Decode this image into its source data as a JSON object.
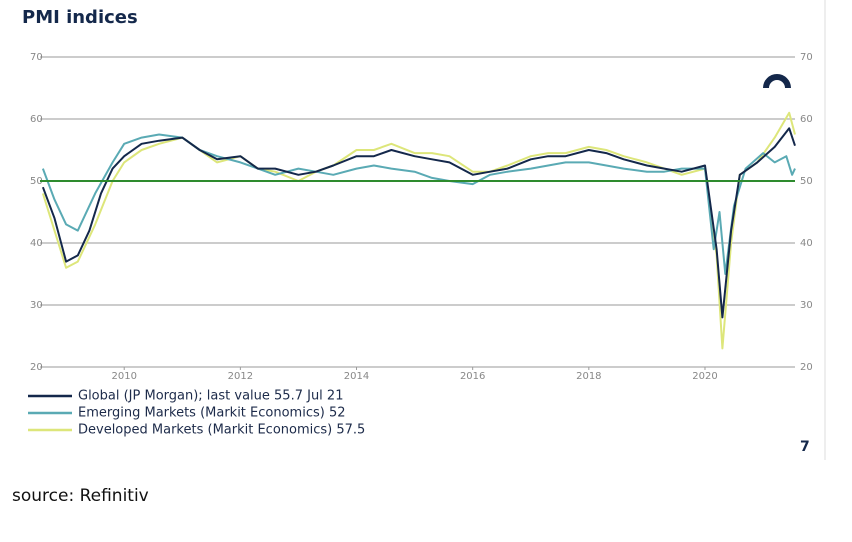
{
  "chart_data": {
    "type": "line",
    "title": "PMI indices",
    "source": "source: Refinitiv",
    "page_number": "7",
    "xlim": [
      2008.55,
      2021.55
    ],
    "xticks": [
      2010,
      2012,
      2014,
      2016,
      2018,
      2020
    ],
    "ylim": [
      20,
      70
    ],
    "yticks": [
      20,
      30,
      40,
      50,
      60,
      70
    ],
    "y2lim": [
      20,
      70
    ],
    "y2ticks": [
      20,
      30,
      40,
      50,
      60,
      70
    ],
    "grid": true,
    "reference_line": {
      "value": 50,
      "color": "#2e8b2e"
    },
    "legend": "bottom-left",
    "series": [
      {
        "name": "Global (JP Morgan); last value 55.7 Jul 21",
        "color": "#14284b",
        "x": [
          2008.6,
          2008.8,
          2009.0,
          2009.2,
          2009.4,
          2009.6,
          2009.8,
          2010.0,
          2010.3,
          2010.6,
          2011.0,
          2011.3,
          2011.6,
          2012.0,
          2012.3,
          2012.6,
          2013.0,
          2013.3,
          2013.6,
          2014.0,
          2014.3,
          2014.6,
          2015.0,
          2015.3,
          2015.6,
          2016.0,
          2016.3,
          2016.6,
          2017.0,
          2017.3,
          2017.6,
          2018.0,
          2018.3,
          2018.6,
          2019.0,
          2019.3,
          2019.6,
          2020.0,
          2020.2,
          2020.3,
          2020.45,
          2020.6,
          2020.9,
          2021.2,
          2021.45,
          2021.55
        ],
        "values": [
          49,
          44,
          37,
          38,
          42,
          48,
          52,
          54,
          56,
          56.5,
          57,
          55,
          53.5,
          54,
          52,
          52,
          51,
          51.5,
          52.5,
          54,
          54,
          55,
          54,
          53.5,
          53,
          51,
          51.5,
          52,
          53.5,
          54,
          54,
          55,
          54.5,
          53.5,
          52.5,
          52,
          51.5,
          52.5,
          39,
          28,
          42,
          51,
          53,
          55.5,
          58.5,
          55.7
        ]
      },
      {
        "name": "Emerging Markets (Markit Economics) 52",
        "color": "#5aaab4",
        "x": [
          2008.6,
          2008.8,
          2009.0,
          2009.2,
          2009.5,
          2009.8,
          2010.0,
          2010.3,
          2010.6,
          2011.0,
          2011.3,
          2011.6,
          2012.0,
          2012.3,
          2012.6,
          2013.0,
          2013.3,
          2013.6,
          2014.0,
          2014.3,
          2014.6,
          2015.0,
          2015.3,
          2015.6,
          2016.0,
          2016.3,
          2016.6,
          2017.0,
          2017.3,
          2017.6,
          2018.0,
          2018.3,
          2018.6,
          2019.0,
          2019.3,
          2019.6,
          2020.0,
          2020.15,
          2020.25,
          2020.35,
          2020.5,
          2020.7,
          2021.0,
          2021.2,
          2021.4,
          2021.5,
          2021.55
        ],
        "values": [
          52,
          47,
          43,
          42,
          48,
          53,
          56,
          57,
          57.5,
          57,
          55,
          54,
          53,
          52,
          51,
          52,
          51.5,
          51,
          52,
          52.5,
          52,
          51.5,
          50.5,
          50,
          49.5,
          51,
          51.5,
          52,
          52.5,
          53,
          53,
          52.5,
          52,
          51.5,
          51.5,
          52,
          52,
          39,
          45,
          35,
          46,
          52,
          54.5,
          53,
          54,
          51,
          52
        ]
      },
      {
        "name": "Developed Markets (Markit Economics) 57.5",
        "color": "#dde67a",
        "x": [
          2008.6,
          2008.8,
          2009.0,
          2009.2,
          2009.5,
          2009.8,
          2010.0,
          2010.3,
          2010.6,
          2011.0,
          2011.3,
          2011.6,
          2012.0,
          2012.3,
          2012.6,
          2013.0,
          2013.3,
          2013.6,
          2014.0,
          2014.3,
          2014.6,
          2015.0,
          2015.3,
          2015.6,
          2016.0,
          2016.3,
          2016.6,
          2017.0,
          2017.3,
          2017.6,
          2018.0,
          2018.3,
          2018.6,
          2019.0,
          2019.3,
          2019.6,
          2020.0,
          2020.2,
          2020.3,
          2020.45,
          2020.6,
          2020.9,
          2021.2,
          2021.45,
          2021.55
        ],
        "values": [
          48,
          42,
          36,
          37,
          43,
          50,
          53,
          55,
          56,
          57,
          55,
          53,
          54,
          52,
          51.5,
          50,
          51.5,
          52.5,
          55,
          55,
          56,
          54.5,
          54.5,
          54,
          51.5,
          51.5,
          52.5,
          54,
          54.5,
          54.5,
          55.5,
          55,
          54,
          53,
          52,
          51,
          52,
          38,
          23,
          40,
          51,
          53,
          57,
          61,
          57.5
        ]
      }
    ]
  }
}
